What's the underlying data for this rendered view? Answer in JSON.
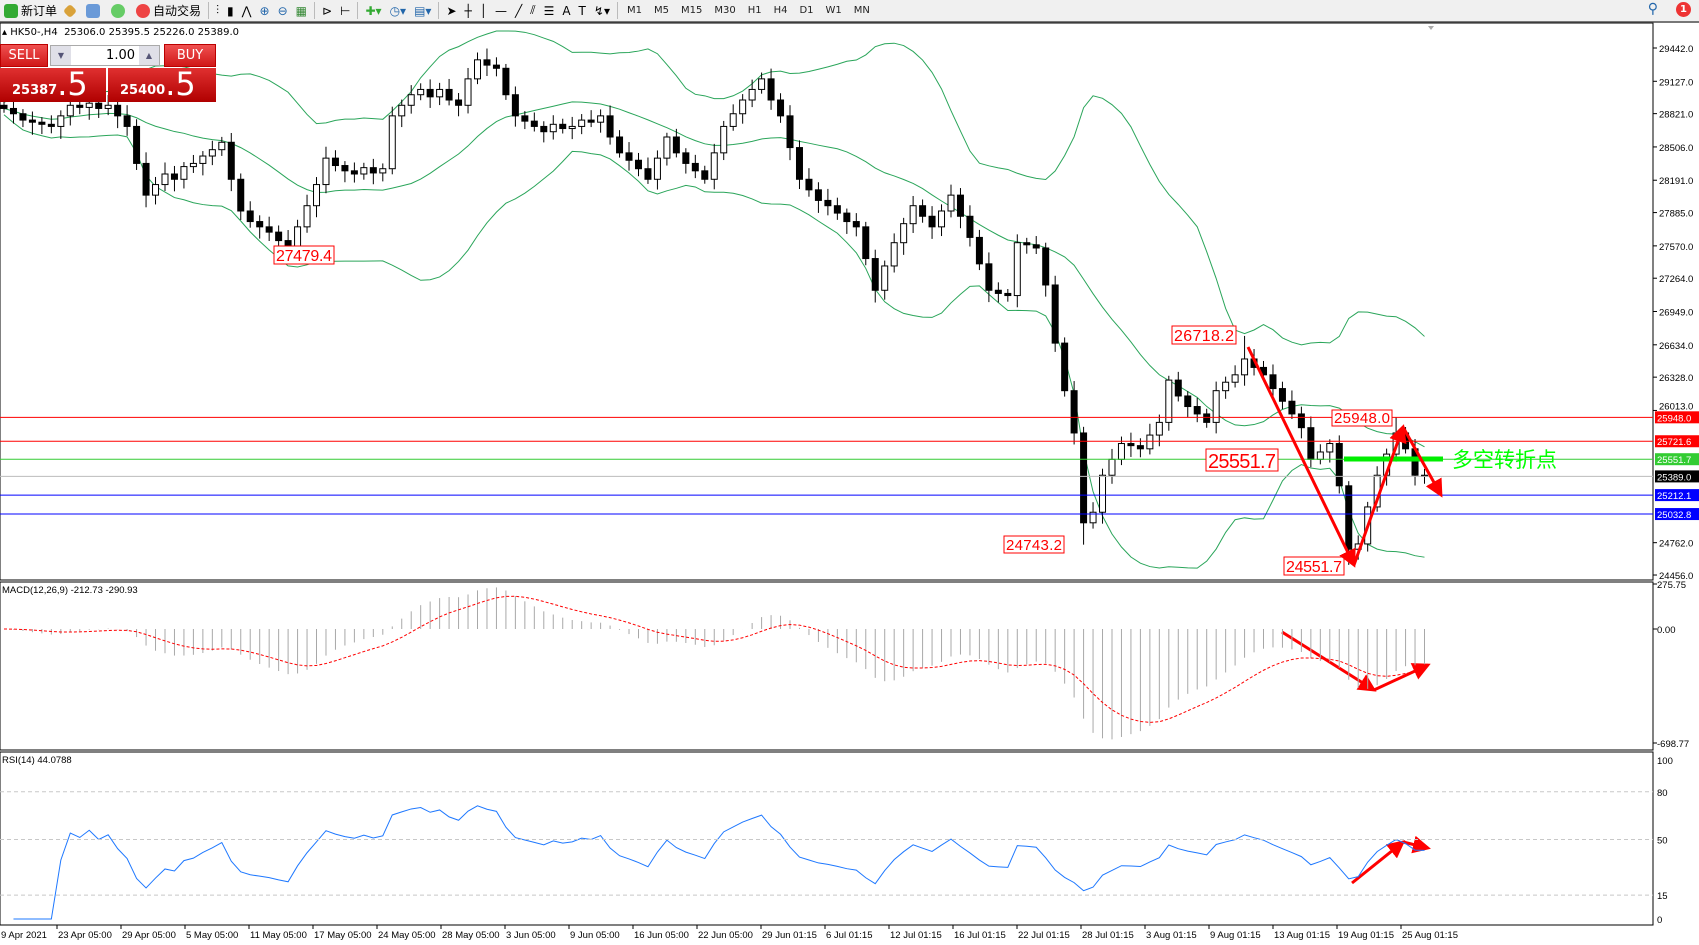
{
  "toolbar": {
    "new_order": "新订单",
    "auto_trading": "自动交易",
    "timeframes": [
      "M1",
      "M5",
      "M15",
      "M30",
      "H1",
      "H4",
      "D1",
      "W1",
      "MN"
    ],
    "notification_count": "1"
  },
  "chart": {
    "symbol_info": "HK50-,H4",
    "ohlc": "25306.0 25395.5 25226.0 25389.0"
  },
  "trade_panel": {
    "sell": "SELL",
    "buy": "BUY",
    "lots": "1.00",
    "bid_main": "25387",
    "bid_frac": ".5",
    "ask_main": "25400",
    "ask_frac": ".5"
  },
  "price_axis": {
    "ticks": [
      29442.0,
      29127.0,
      28821.0,
      28506.0,
      28191.0,
      27885.0,
      27570.0,
      27264.0,
      26949.0,
      26634.0,
      26328.0,
      26013.0,
      24762.0,
      24456.0
    ]
  },
  "levels": [
    {
      "price": 25948.0,
      "label": "25948.0",
      "color": "#ff0000"
    },
    {
      "price": 25721.6,
      "label": "25721.6",
      "color": "#ff0000"
    },
    {
      "price": 25551.7,
      "label": "25551.7",
      "color": "#33cc33"
    },
    {
      "price": 25389.0,
      "label": "25389.0",
      "color": "#000000"
    },
    {
      "price": 25212.1,
      "label": "25212.1",
      "color": "#0000ff"
    },
    {
      "price": 25032.8,
      "label": "25032.8",
      "color": "#0000ff"
    }
  ],
  "annotations": {
    "price_labels": [
      "27479.4",
      "26718.2",
      "24743.2",
      "25948.0",
      "25551.7",
      "24551.7"
    ],
    "pivot_text": "多空转折点",
    "colors": {
      "label": "#ff0000",
      "pivot": "#00ff00",
      "arrow": "#ff0000"
    }
  },
  "chart_data": {
    "type": "candlestick",
    "indicators": [
      "Bollinger Bands(20,2)"
    ],
    "x_labels": [
      "9 Apr 2021",
      "23 Apr 05:00",
      "29 Apr 05:00",
      "5 May 05:00",
      "11 May 05:00",
      "17 May 05:00",
      "24 May 05:00",
      "28 May 05:00",
      "3 Jun 05:00",
      "9 Jun 05:00",
      "16 Jun 05:00",
      "22 Jun 05:00",
      "29 Jun 01:15",
      "6 Jul 01:15",
      "12 Jul 01:15",
      "16 Jul 01:15",
      "22 Jul 01:15",
      "28 Jul 01:15",
      "3 Aug 01:15",
      "9 Aug 01:15",
      "13 Aug 01:15",
      "19 Aug 01:15",
      "25 Aug 01:15"
    ],
    "ylim": [
      24456.0,
      29442.0
    ],
    "close": [
      28870,
      28820,
      28760,
      28740,
      28720,
      28700,
      28800,
      28900,
      28880,
      28920,
      28870,
      28900,
      28800,
      28700,
      28350,
      28050,
      28150,
      28250,
      28200,
      28320,
      28350,
      28420,
      28480,
      28550,
      28200,
      27900,
      27800,
      27750,
      27700,
      27620,
      27550,
      27750,
      27950,
      28150,
      28400,
      28330,
      28280,
      28250,
      28310,
      28260,
      28300,
      28800,
      28900,
      29000,
      29050,
      28980,
      29050,
      28950,
      28900,
      29150,
      29330,
      29280,
      29250,
      29000,
      28800,
      28750,
      28700,
      28650,
      28720,
      28680,
      28700,
      28760,
      28740,
      28800,
      28600,
      28450,
      28380,
      28300,
      28200,
      28400,
      28600,
      28450,
      28350,
      28280,
      28200,
      28450,
      28700,
      28820,
      28950,
      29050,
      29150,
      28950,
      28800,
      28500,
      28200,
      28100,
      28000,
      27950,
      27880,
      27800,
      27750,
      27450,
      27150,
      27380,
      27600,
      27780,
      27950,
      27850,
      27750,
      27900,
      28050,
      27850,
      27650,
      27400,
      27150,
      27120,
      27100,
      27600,
      27580,
      27550,
      27200,
      26650,
      26200,
      25800,
      24950,
      25050,
      25400,
      25550,
      25700,
      25680,
      25650,
      25780,
      25900,
      26300,
      26150,
      26050,
      25980,
      25900,
      26200,
      26280,
      26350,
      26500,
      26420,
      26350,
      26220,
      26100,
      25980,
      25850,
      25550,
      25620,
      25700,
      25300,
      24700,
      24750,
      25100,
      25400,
      25600,
      25800,
      25650,
      25400,
      25389
    ]
  },
  "macd": {
    "label": "MACD(12,26,9) -212.73 -290.93",
    "ticks": [
      "275.75",
      "0.00",
      "-698.77"
    ],
    "range": [
      -698.77,
      275.75
    ],
    "colors": {
      "histogram": "#a8a8a8",
      "signal": "#ff0000"
    }
  },
  "rsi": {
    "label": "RSI(14) 44.0788",
    "ticks": [
      "100",
      "80",
      "50",
      "15",
      "0"
    ],
    "levels": [
      80,
      50,
      15
    ],
    "color": "#1e78ff"
  }
}
